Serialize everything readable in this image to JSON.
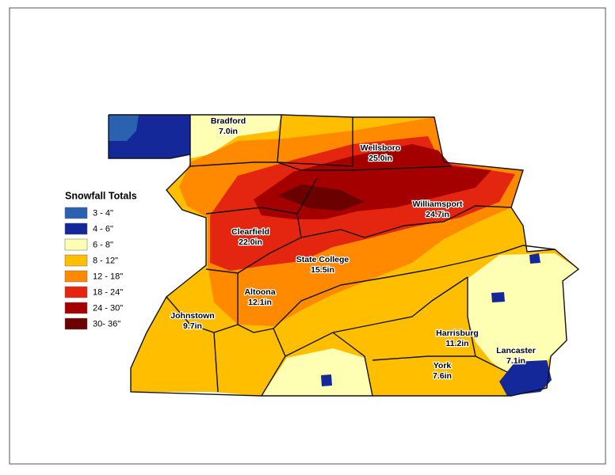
{
  "legend": {
    "title": "Snowfall Totals",
    "items": [
      {
        "label": "3 - 4\"",
        "color": "#2a62b0"
      },
      {
        "label": "4 - 6\"",
        "color": "#14289a"
      },
      {
        "label": "6 - 8\"",
        "color": "#ffffb4"
      },
      {
        "label": "8 - 12\"",
        "color": "#ffbf00"
      },
      {
        "label": "12 - 18\"",
        "color": "#ff8a00"
      },
      {
        "label": "18 - 24\"",
        "color": "#e42610"
      },
      {
        "label": "24 - 30\"",
        "color": "#a50000"
      },
      {
        "label": "30- 36\"",
        "color": "#6a0000"
      }
    ]
  },
  "cities": [
    {
      "name": "Bradford",
      "snowfall": "7.0in"
    },
    {
      "name": "Wellsboro",
      "snowfall": "25.0in"
    },
    {
      "name": "Williamsport",
      "snowfall": "24.7in"
    },
    {
      "name": "Clearfield",
      "snowfall": "22.0in"
    },
    {
      "name": "State College",
      "snowfall": "15.5in"
    },
    {
      "name": "Altoona",
      "snowfall": "12.1in"
    },
    {
      "name": "Johnstown",
      "snowfall": "9.7in"
    },
    {
      "name": "Harrisburg",
      "snowfall": "11.2in"
    },
    {
      "name": "Lancaster",
      "snowfall": "7.1in"
    },
    {
      "name": "York",
      "snowfall": "7.6in"
    }
  ]
}
